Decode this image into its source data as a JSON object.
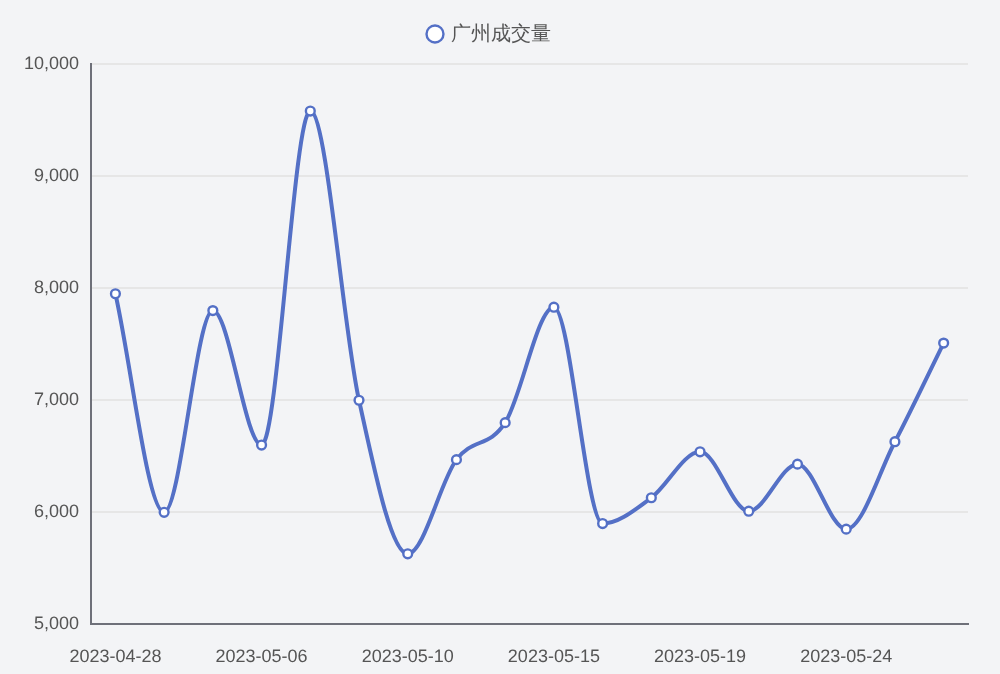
{
  "chart_data": {
    "type": "line",
    "categories": [
      "2023-04-28",
      null,
      null,
      "2023-05-06",
      null,
      null,
      "2023-05-10",
      null,
      null,
      "2023-05-15",
      null,
      null,
      "2023-05-19",
      null,
      null,
      "2023-05-24",
      null,
      null
    ],
    "series": [
      {
        "name": "广州成交量",
        "color": "#5470c6",
        "values": [
          7950,
          6000,
          7800,
          6600,
          9580,
          7000,
          5630,
          6470,
          6800,
          7830,
          5900,
          6130,
          6540,
          6010,
          6430,
          5850,
          6630,
          7510
        ]
      }
    ],
    "ylim": [
      5000,
      10000
    ],
    "yticks": [
      {
        "value": 5000,
        "label": "5,000"
      },
      {
        "value": 6000,
        "label": "6,000"
      },
      {
        "value": 7000,
        "label": "7,000"
      },
      {
        "value": 8000,
        "label": "8,000"
      },
      {
        "value": 9000,
        "label": "9,000"
      },
      {
        "value": 10000,
        "label": "10,000"
      }
    ],
    "grid": "y",
    "legend": "top",
    "marker": "circle",
    "line_style": "solid"
  }
}
